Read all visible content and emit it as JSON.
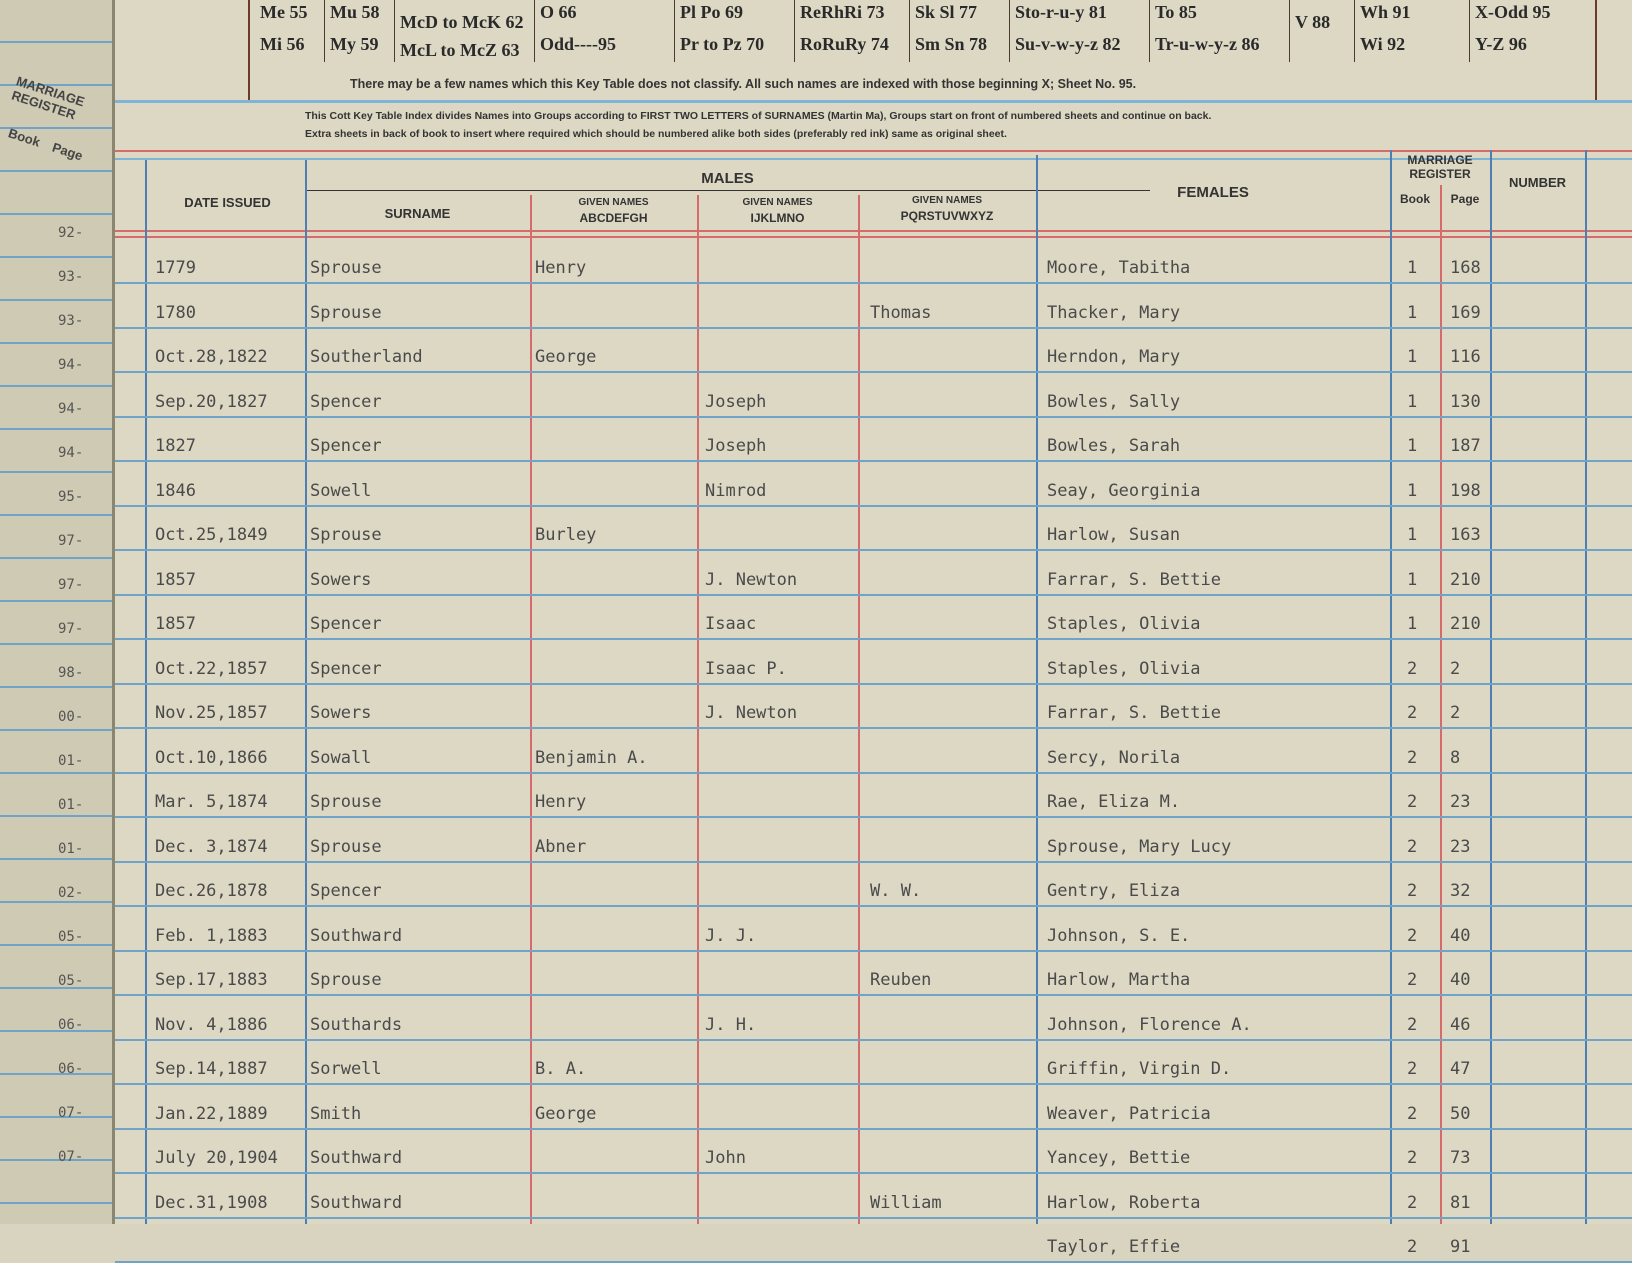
{
  "left_page": {
    "header": "MARRIAGE REGISTER",
    "book": "Book",
    "page": "Page",
    "numbers": [
      "92-",
      "93-",
      "93-",
      "94-",
      "94-",
      "94-",
      "95-",
      "97-",
      "97-",
      "97-",
      "98-",
      "00-",
      "01-",
      "01-",
      "01-",
      "02-",
      "05-",
      "05-",
      "06-",
      "06-",
      "07-",
      "07-"
    ]
  },
  "key_table": {
    "cells": [
      [
        "Me 55",
        "Mi 56"
      ],
      [
        "Mu 58",
        "My 59"
      ],
      [
        "McD to McK 62",
        "McL to McZ 63"
      ],
      [
        "O 66",
        "Odd----95"
      ],
      [
        "Pl Po 69",
        "Pr to Pz 70"
      ],
      [
        "ReRhRi 73",
        "RoRuRy 74"
      ],
      [
        "Sk Sl 77",
        "Sm Sn 78"
      ],
      [
        "Sto-r-u-y 81",
        "Su-v-w-y-z 82"
      ],
      [
        "To 85",
        "Tr-u-w-y-z 86"
      ],
      [
        "V 88",
        ""
      ],
      [
        "Wh 91",
        "Wi 92"
      ],
      [
        "X-Odd 95",
        "Y-Z 96"
      ]
    ],
    "footnote": "There may be a few names which this Key Table does not classify.   All such names are indexed with those beginning X; Sheet No. 95."
  },
  "instructions": [
    "This Cott Key Table Index divides Names into Groups according to FIRST TWO LETTERS of SURNAMES (Martin Ma), Groups start on front of numbered sheets and continue on back.",
    "Extra sheets in back of book to insert where required which should be numbered alike both sides (preferably red ink) same as original sheet."
  ],
  "headers": {
    "date_issued": "DATE ISSUED",
    "males": "MALES",
    "surname": "SURNAME",
    "given_names": "GIVEN NAMES",
    "given_abc": "ABCDEFGH",
    "given_ijk": "IJKLMNO",
    "given_pqr": "PQRSTUVWXYZ",
    "females": "FEMALES",
    "marriage_register": "MARRIAGE REGISTER",
    "book": "Book",
    "page": "Page",
    "number": "NUMBER"
  },
  "rows": [
    {
      "date": "1779",
      "surname": "Sprouse",
      "abc": "Henry",
      "ijk": "",
      "pqr": "",
      "female": "Moore, Tabitha",
      "book": "1",
      "page": "168"
    },
    {
      "date": "1780",
      "surname": "Sprouse",
      "abc": "",
      "ijk": "",
      "pqr": "Thomas",
      "female": "Thacker, Mary",
      "book": "1",
      "page": "169"
    },
    {
      "date": "Oct.28,1822",
      "surname": "Southerland",
      "abc": "George",
      "ijk": "",
      "pqr": "",
      "female": "Herndon, Mary",
      "book": "1",
      "page": "116"
    },
    {
      "date": "Sep.20,1827",
      "surname": "Spencer",
      "abc": "",
      "ijk": "Joseph",
      "pqr": "",
      "female": "Bowles, Sally",
      "book": "1",
      "page": "130"
    },
    {
      "date": "1827",
      "surname": "Spencer",
      "abc": "",
      "ijk": "Joseph",
      "pqr": "",
      "female": "Bowles, Sarah",
      "book": "1",
      "page": "187"
    },
    {
      "date": "1846",
      "surname": "Sowell",
      "abc": "",
      "ijk": "Nimrod",
      "pqr": "",
      "female": "Seay, Georginia",
      "book": "1",
      "page": "198"
    },
    {
      "date": "Oct.25,1849",
      "surname": "Sprouse",
      "abc": "Burley",
      "ijk": "",
      "pqr": "",
      "female": "Harlow, Susan",
      "book": "1",
      "page": "163"
    },
    {
      "date": "1857",
      "surname": "Sowers",
      "abc": "",
      "ijk": "J. Newton",
      "pqr": "",
      "female": "Farrar, S. Bettie",
      "book": "1",
      "page": "210"
    },
    {
      "date": "1857",
      "surname": "Spencer",
      "abc": "",
      "ijk": "Isaac",
      "pqr": "",
      "female": "Staples, Olivia",
      "book": "1",
      "page": "210"
    },
    {
      "date": "Oct.22,1857",
      "surname": "Spencer",
      "abc": "",
      "ijk": "Isaac P.",
      "pqr": "",
      "female": "Staples, Olivia",
      "book": "2",
      "page": "2"
    },
    {
      "date": "Nov.25,1857",
      "surname": "Sowers",
      "abc": "",
      "ijk": "J. Newton",
      "pqr": "",
      "female": "Farrar, S. Bettie",
      "book": "2",
      "page": "2"
    },
    {
      "date": "Oct.10,1866",
      "surname": "Sowall",
      "abc": "Benjamin A.",
      "ijk": "",
      "pqr": "",
      "female": "Sercy, Norila",
      "book": "2",
      "page": "8"
    },
    {
      "date": "Mar. 5,1874",
      "surname": "Sprouse",
      "abc": "Henry",
      "ijk": "",
      "pqr": "",
      "female": "Rae, Eliza M.",
      "book": "2",
      "page": "23"
    },
    {
      "date": "Dec. 3,1874",
      "surname": "Sprouse",
      "abc": "Abner",
      "ijk": "",
      "pqr": "",
      "female": "Sprouse, Mary Lucy",
      "book": "2",
      "page": "23"
    },
    {
      "date": "Dec.26,1878",
      "surname": "Spencer",
      "abc": "",
      "ijk": "",
      "pqr": "W. W.",
      "female": "Gentry, Eliza",
      "book": "2",
      "page": "32"
    },
    {
      "date": "Feb. 1,1883",
      "surname": "Southward",
      "abc": "",
      "ijk": "J. J.",
      "pqr": "",
      "female": "Johnson, S. E.",
      "book": "2",
      "page": "40"
    },
    {
      "date": "Sep.17,1883",
      "surname": "Sprouse",
      "abc": "",
      "ijk": "",
      "pqr": "Reuben",
      "female": "Harlow, Martha",
      "book": "2",
      "page": "40"
    },
    {
      "date": "Nov. 4,1886",
      "surname": "Southards",
      "abc": "",
      "ijk": "J. H.",
      "pqr": "",
      "female": "Johnson, Florence A.",
      "book": "2",
      "page": "46"
    },
    {
      "date": "Sep.14,1887",
      "surname": "Sorwell",
      "abc": "B. A.",
      "ijk": "",
      "pqr": "",
      "female": "Griffin, Virgin D.",
      "book": "2",
      "page": "47"
    },
    {
      "date": "Jan.22,1889",
      "surname": "Smith",
      "abc": "George",
      "ijk": "",
      "pqr": "",
      "female": "Weaver, Patricia",
      "book": "2",
      "page": "50"
    },
    {
      "date": "July 20,1904",
      "surname": "Southward",
      "abc": "",
      "ijk": "John",
      "pqr": "",
      "female": "Yancey, Bettie",
      "book": "2",
      "page": "73"
    },
    {
      "date": "Dec.31,1908",
      "surname": "Southward",
      "abc": "",
      "ijk": "",
      "pqr": "William",
      "female": "Harlow, Roberta",
      "book": "2",
      "page": "81"
    },
    {
      "date": "",
      "surname": "",
      "abc": "",
      "ijk": "",
      "pqr": "",
      "female": "Taylor, Effie",
      "book": "2",
      "page": "91"
    }
  ],
  "colors": {
    "paper": "#dcd8c4",
    "blue_rule": "#6fa3c8",
    "red_rule": "#d76b6b",
    "ink": "#4a4a4a"
  }
}
